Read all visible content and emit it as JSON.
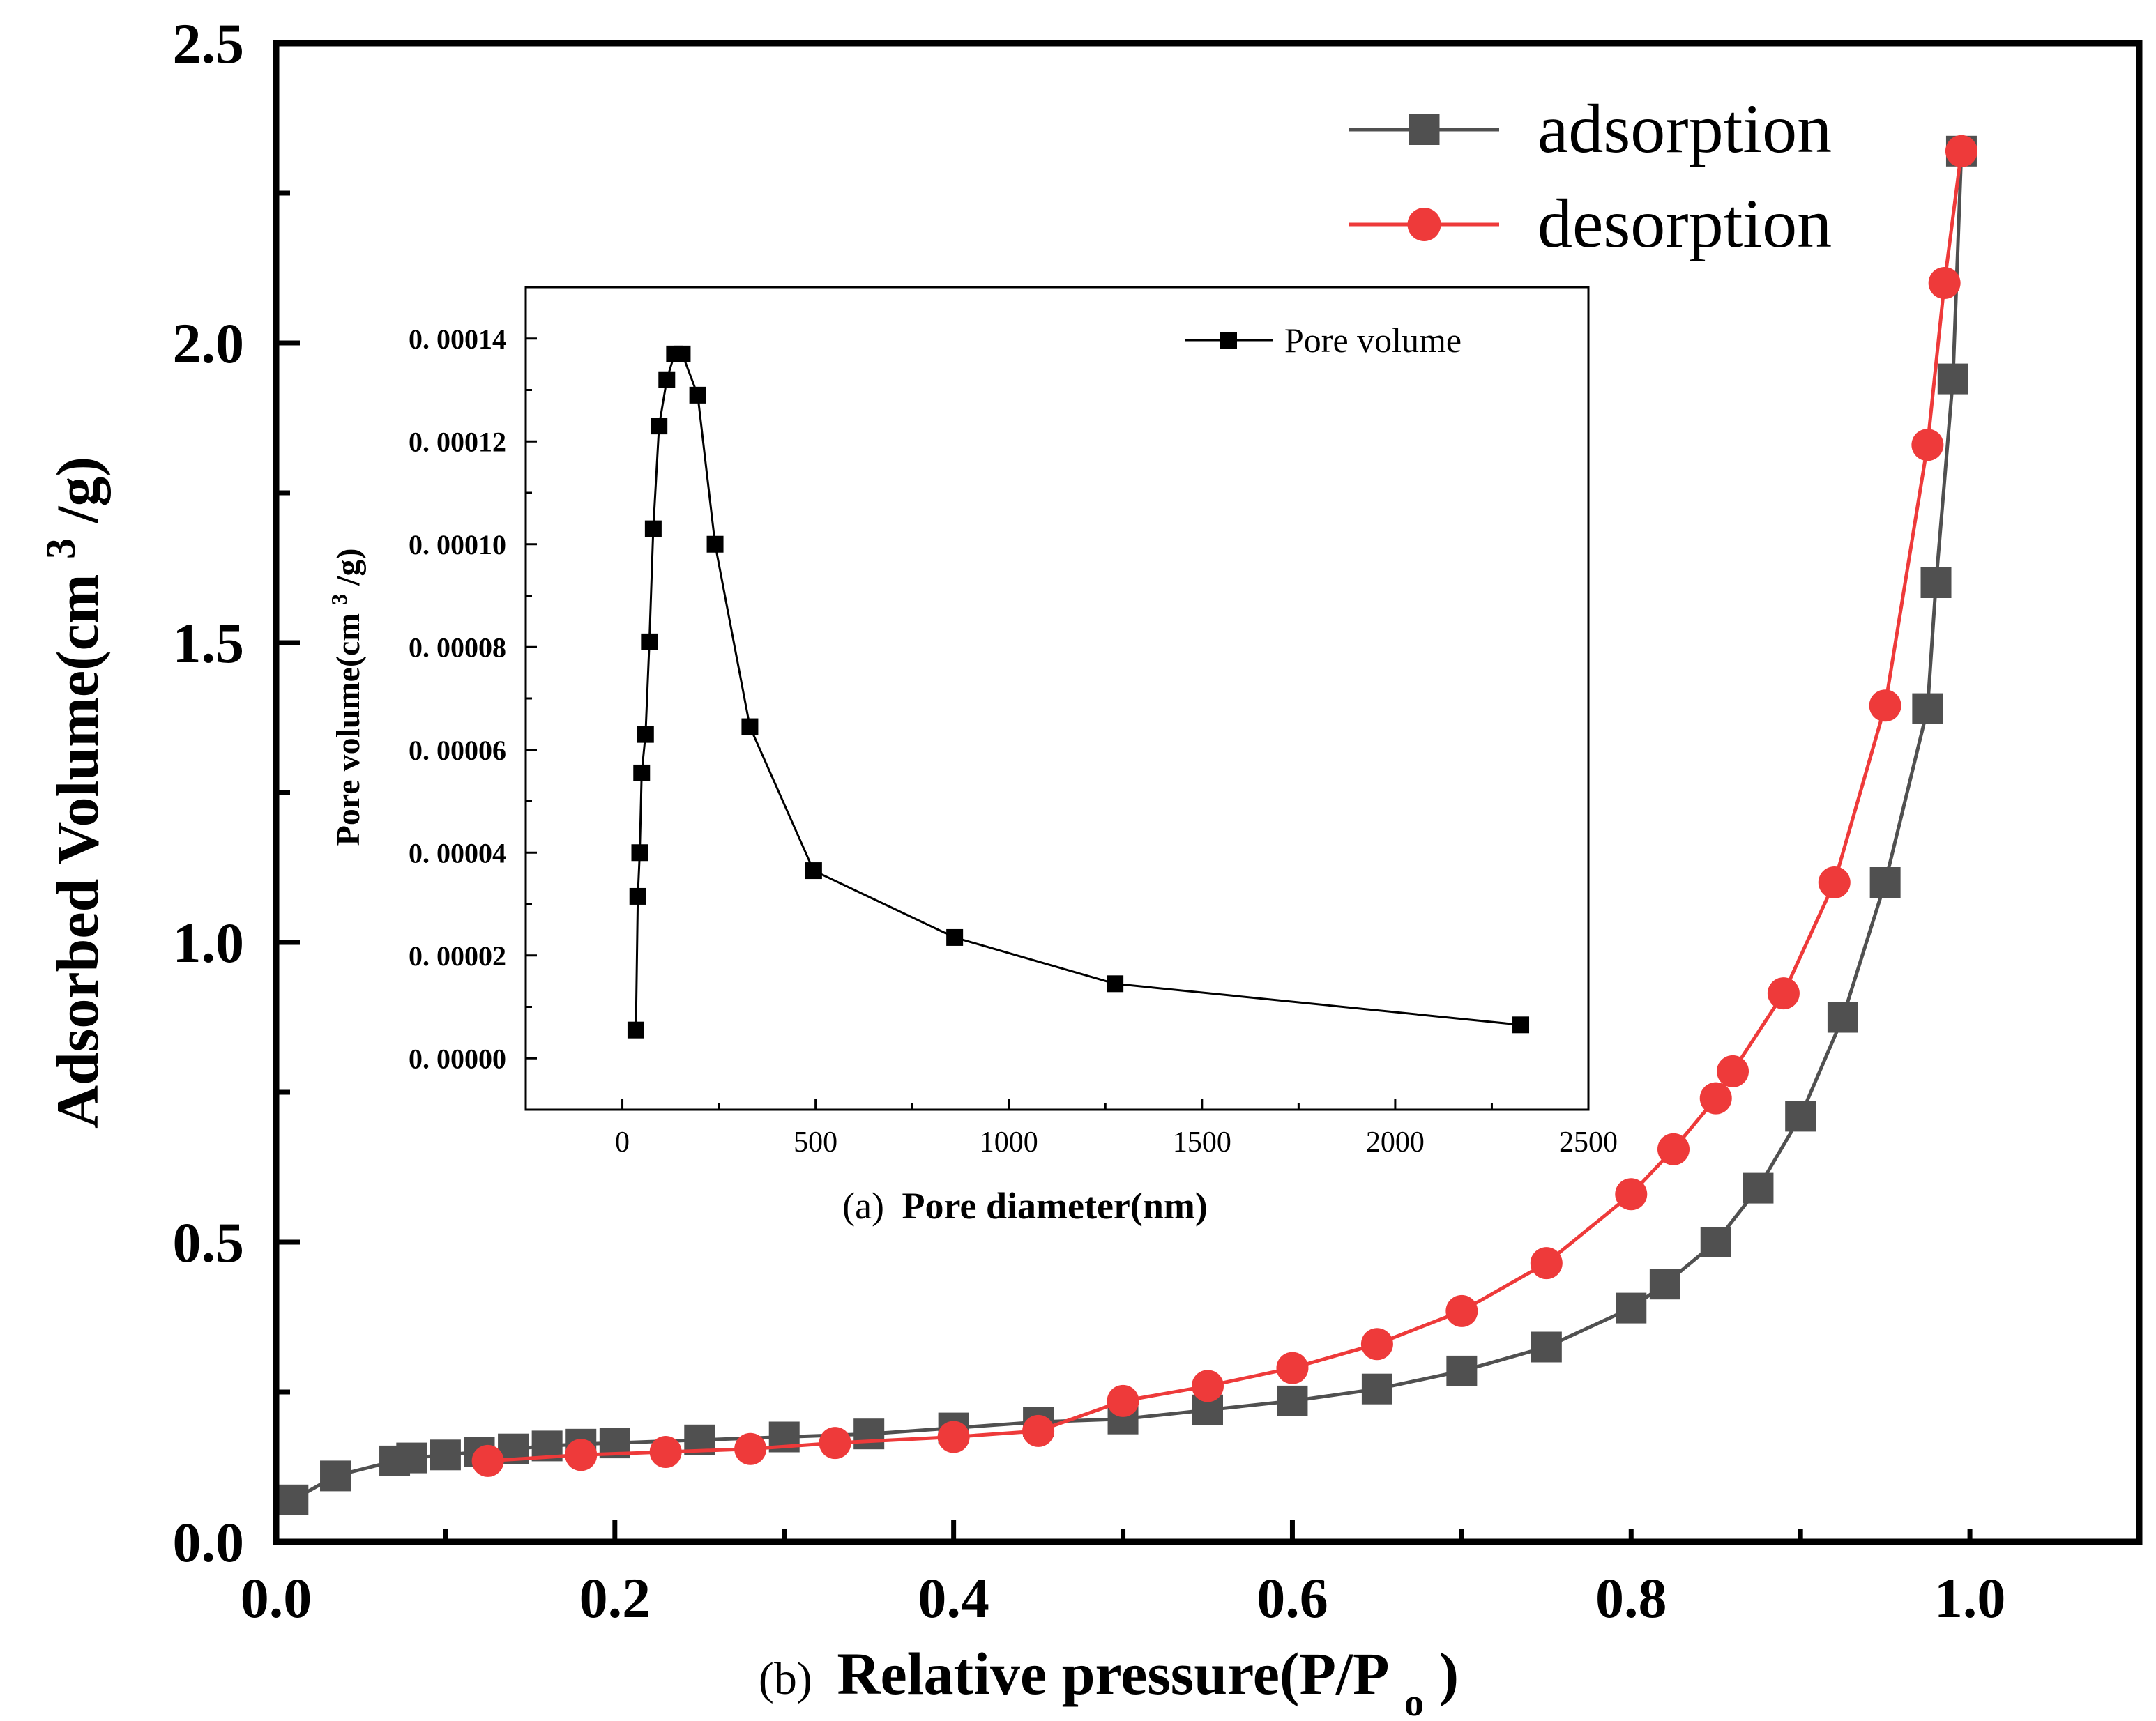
{
  "chart_data": [
    {
      "id": "main",
      "type": "line",
      "xlabel_prefix": "(b)",
      "xlabel": "Relative pressure(P/P",
      "xlabel_sub": "o",
      "xlabel_suffix": ")",
      "ylabel": "Adsorbed Volume(cm",
      "ylabel_sup": "3",
      "ylabel_suffix": "/g)",
      "xlim": [
        0.0,
        1.1
      ],
      "ylim": [
        0.0,
        2.5
      ],
      "xticks": [
        0.0,
        0.2,
        0.4,
        0.6,
        0.8,
        1.0
      ],
      "xtick_labels": [
        "0.0",
        "0.2",
        "0.4",
        "0.6",
        "0.8",
        "1.0"
      ],
      "yticks": [
        0.0,
        0.5,
        1.0,
        1.5,
        2.0,
        2.5
      ],
      "ytick_labels": [
        "0.0",
        "0.5",
        "1.0",
        "1.5",
        "2.0",
        "2.5"
      ],
      "legend_position": "top-right",
      "series": [
        {
          "name": "adsorption",
          "marker": "square",
          "color": "#505050",
          "x": [
            0.01,
            0.035,
            0.07,
            0.08,
            0.1,
            0.12,
            0.14,
            0.16,
            0.18,
            0.2,
            0.25,
            0.3,
            0.35,
            0.4,
            0.45,
            0.5,
            0.55,
            0.6,
            0.65,
            0.7,
            0.75,
            0.8,
            0.82,
            0.85,
            0.875,
            0.9,
            0.925,
            0.95,
            0.975,
            0.98,
            0.99,
            0.995
          ],
          "y": [
            0.07,
            0.11,
            0.135,
            0.14,
            0.145,
            0.15,
            0.155,
            0.16,
            0.163,
            0.165,
            0.17,
            0.175,
            0.18,
            0.19,
            0.2,
            0.205,
            0.22,
            0.235,
            0.255,
            0.285,
            0.325,
            0.39,
            0.43,
            0.5,
            0.59,
            0.71,
            0.875,
            1.1,
            1.39,
            1.6,
            1.94,
            2.32
          ]
        },
        {
          "name": "desorption",
          "marker": "circle",
          "color": "#ee3a3a",
          "x": [
            0.125,
            0.18,
            0.23,
            0.28,
            0.33,
            0.4,
            0.45,
            0.5,
            0.55,
            0.6,
            0.65,
            0.7,
            0.75,
            0.8,
            0.825,
            0.85,
            0.86,
            0.89,
            0.92,
            0.95,
            0.975,
            0.985,
            0.995
          ],
          "y": [
            0.135,
            0.145,
            0.15,
            0.155,
            0.165,
            0.175,
            0.185,
            0.235,
            0.26,
            0.29,
            0.33,
            0.385,
            0.465,
            0.58,
            0.655,
            0.74,
            0.785,
            0.915,
            1.1,
            1.395,
            1.83,
            2.1,
            2.32
          ]
        }
      ]
    },
    {
      "id": "inset",
      "type": "line",
      "xlabel_prefix": "(a)",
      "xlabel": "Pore diameter(nm)",
      "ylabel": "Pore volume(cm",
      "ylabel_sup": "3",
      "ylabel_suffix": "/g)",
      "xlim": [
        -250,
        2500
      ],
      "ylim": [
        -1e-05,
        0.00015
      ],
      "xticks": [
        0,
        500,
        1000,
        1500,
        2000,
        2500
      ],
      "xtick_labels": [
        "0",
        "500",
        "1000",
        "1500",
        "2000",
        "2500"
      ],
      "yticks": [
        0,
        2e-05,
        4e-05,
        6e-05,
        8e-05,
        0.0001,
        0.00012,
        0.00014
      ],
      "ytick_labels": [
        "0. 00000",
        "0. 00002",
        "0. 00004",
        "0. 00006",
        "0. 00008",
        "0. 00010",
        "0. 00012",
        "0. 00014"
      ],
      "legend_position": "top-right",
      "series": [
        {
          "name": "Pore volume",
          "marker": "square",
          "color": "#000000",
          "x": [
            35,
            40,
            45,
            50,
            60,
            70,
            80,
            95,
            115,
            135,
            155,
            195,
            240,
            330,
            495,
            860,
            1275,
            2325
          ],
          "y": [
            5.5e-06,
            3.15e-05,
            4e-05,
            5.55e-05,
            6.3e-05,
            8.1e-05,
            0.000103,
            0.000123,
            0.000132,
            0.000137,
            0.000137,
            0.000129,
            0.0001,
            6.45e-05,
            3.65e-05,
            2.35e-05,
            1.45e-05,
            6.5e-06
          ]
        }
      ]
    }
  ]
}
